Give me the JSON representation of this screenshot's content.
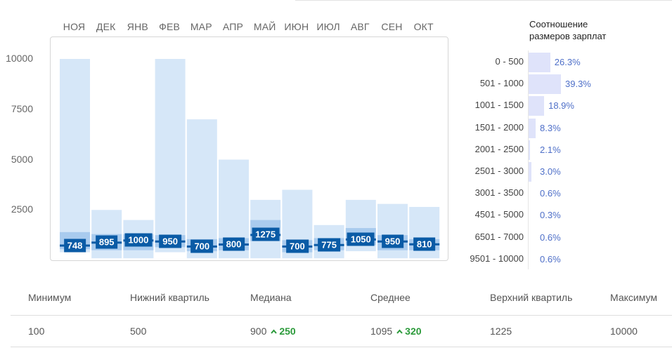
{
  "chart_data": {
    "type": "box",
    "categories": [
      "НОЯ",
      "ДЕК",
      "ЯНВ",
      "ФЕВ",
      "МАР",
      "АПР",
      "МАЙ",
      "ИЮН",
      "ИЮЛ",
      "АВГ",
      "СЕН",
      "ОКТ"
    ],
    "y_ticks": [
      "10000",
      "7500",
      "5000",
      "2500"
    ],
    "ylim": [
      0,
      10000
    ],
    "series": [
      {
        "min": 400,
        "q1": 550,
        "median": 748,
        "q3": 1400,
        "max": 10000
      },
      {
        "min": 100,
        "q1": 500,
        "median": 895,
        "q3": 1300,
        "max": 2500
      },
      {
        "min": 100,
        "q1": 500,
        "median": 1000,
        "q3": 1300,
        "max": 2000
      },
      {
        "min": 400,
        "q1": 650,
        "median": 950,
        "q3": 1250,
        "max": 10000
      },
      {
        "min": 100,
        "q1": 450,
        "median": 700,
        "q3": 1050,
        "max": 7000
      },
      {
        "min": 100,
        "q1": 500,
        "median": 800,
        "q3": 1100,
        "max": 5000
      },
      {
        "min": 100,
        "q1": 950,
        "median": 1275,
        "q3": 2000,
        "max": 3000
      },
      {
        "min": 100,
        "q1": 400,
        "median": 700,
        "q3": 1000,
        "max": 3500
      },
      {
        "min": 100,
        "q1": 500,
        "median": 775,
        "q3": 1100,
        "max": 1750
      },
      {
        "min": 450,
        "q1": 750,
        "median": 1050,
        "q3": 1600,
        "max": 3000
      },
      {
        "min": 100,
        "q1": 500,
        "median": 950,
        "q3": 1250,
        "max": 2800
      },
      {
        "min": 100,
        "q1": 500,
        "median": 810,
        "q3": 1050,
        "max": 2650
      }
    ],
    "median_labels": [
      "748",
      "895",
      "1000",
      "950",
      "700",
      "800",
      "1275",
      "700",
      "775",
      "1050",
      "950",
      "810"
    ]
  },
  "distribution": {
    "title_line1": "Соотношение",
    "title_line2": "размеров зарплат",
    "rows": [
      {
        "range": "0 - 500",
        "pct": "26.3%",
        "value": 26.3
      },
      {
        "range": "501 - 1000",
        "pct": "39.3%",
        "value": 39.3
      },
      {
        "range": "1001 - 1500",
        "pct": "18.9%",
        "value": 18.9
      },
      {
        "range": "1501 - 2000",
        "pct": "8.3%",
        "value": 8.3
      },
      {
        "range": "2001 - 2500",
        "pct": "2.1%",
        "value": 2.1
      },
      {
        "range": "2501 - 3000",
        "pct": "3.0%",
        "value": 3.0
      },
      {
        "range": "3001 - 3500",
        "pct": "0.6%",
        "value": 0.6
      },
      {
        "range": "4501 - 5000",
        "pct": "0.3%",
        "value": 0.3
      },
      {
        "range": "6501 - 7000",
        "pct": "0.6%",
        "value": 0.6
      },
      {
        "range": "9501 - 10000",
        "pct": "0.6%",
        "value": 0.6
      }
    ]
  },
  "stats": {
    "headers": [
      "Минимум",
      "Нижний квартиль",
      "Медиана",
      "Среднее",
      "Верхний квартиль",
      "Максимум"
    ],
    "values": [
      "100",
      "500",
      "900",
      "1095",
      "1225",
      "10000"
    ],
    "median_delta": "250",
    "mean_delta": "320"
  },
  "colors": {
    "range_fill": "#d6e7f8",
    "iqr_fill": "#a9cbee",
    "median_line": "#0a5ba6",
    "dist_bar": "#dfe3fa",
    "dist_pct": "#4e6fc8",
    "trend_up": "#2b9a3a"
  }
}
